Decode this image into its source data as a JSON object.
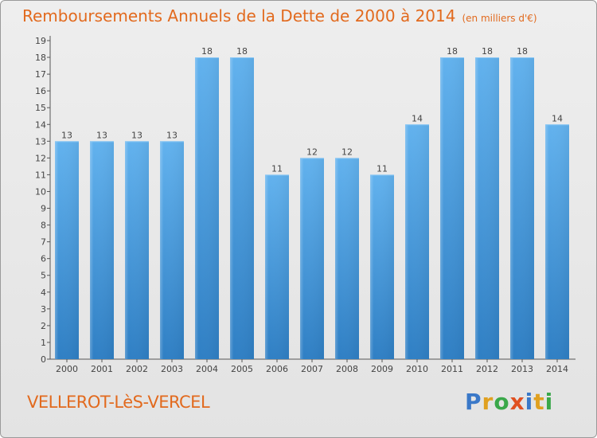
{
  "chart_data": {
    "type": "bar",
    "title": "Remboursements Annuels de la Dette de 2000 à 2014",
    "subtitle": "(en milliers d'€)",
    "categories": [
      "2000",
      "2001",
      "2002",
      "2003",
      "2004",
      "2005",
      "2006",
      "2007",
      "2008",
      "2009",
      "2010",
      "2011",
      "2012",
      "2013",
      "2014"
    ],
    "values": [
      13,
      13,
      13,
      13,
      18,
      18,
      11,
      12,
      12,
      11,
      14,
      18,
      18,
      18,
      14
    ],
    "ylim": [
      0,
      19
    ],
    "yticks": [
      0,
      1,
      2,
      3,
      4,
      5,
      6,
      7,
      8,
      9,
      10,
      11,
      12,
      13,
      14,
      15,
      16,
      17,
      18,
      19
    ],
    "grid": false,
    "bar_color": "#4a9fe0",
    "title_color": "#e26a1e"
  },
  "footer": {
    "commune": "VELLEROT-LèS-VERCEL"
  },
  "logo": {
    "letters": [
      {
        "ch": "P",
        "color": "#3a78c8"
      },
      {
        "ch": "r",
        "color": "#e0a020"
      },
      {
        "ch": "o",
        "color": "#3aa84a"
      },
      {
        "ch": "x",
        "color": "#e05020"
      },
      {
        "ch": "i",
        "color": "#3a78c8"
      },
      {
        "ch": "t",
        "color": "#e0a020"
      },
      {
        "ch": "i",
        "color": "#3aa84a"
      }
    ]
  }
}
